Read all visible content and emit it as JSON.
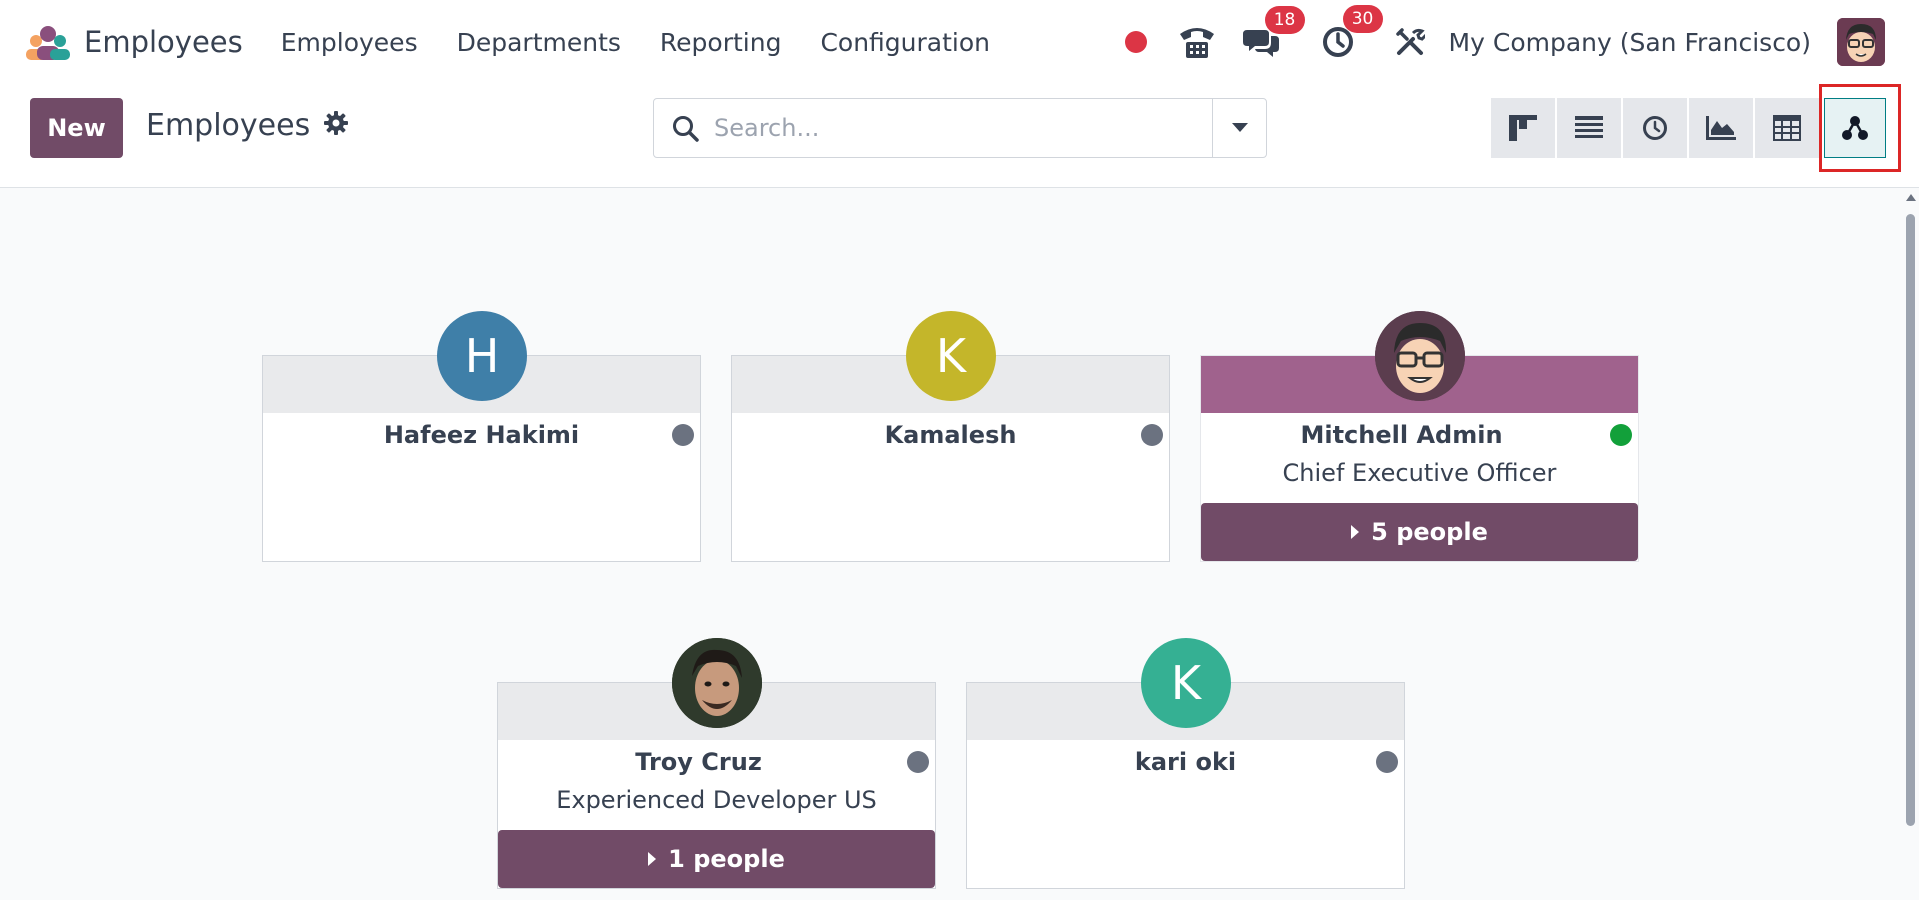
{
  "navbar": {
    "app_name": "Employees",
    "menu": [
      "Employees",
      "Departments",
      "Reporting",
      "Configuration"
    ],
    "messages_badge": "18",
    "activities_badge": "30",
    "company": "My Company (San Francisco)"
  },
  "control": {
    "new_label": "New",
    "breadcrumb": "Employees",
    "search_placeholder": "Search...",
    "views": [
      "kanban-view",
      "list-view",
      "activity-view",
      "graph-view",
      "pivot-view",
      "hierarchy-view"
    ],
    "active_view": "hierarchy-view"
  },
  "cards": [
    {
      "name": "Hafeez Hakimi",
      "job": "",
      "initial": "H",
      "avatar_color": "#3f7fa8",
      "presence": "offline",
      "people": ""
    },
    {
      "name": "Kamalesh",
      "job": "",
      "initial": "K",
      "avatar_color": "#c4b62a",
      "presence": "offline",
      "people": ""
    },
    {
      "name": "Mitchell Admin",
      "job": "Chief Executive Officer",
      "initial": "",
      "avatar_color": "#5b3d4e",
      "presence": "online",
      "people": "5 people"
    },
    {
      "name": "Troy Cruz",
      "job": "Experienced Developer US",
      "initial": "",
      "avatar_color": "#2f3a2c",
      "presence": "offline",
      "people": "1 people"
    },
    {
      "name": "kari oki",
      "job": "",
      "initial": "K",
      "avatar_color": "#35b093",
      "presence": "offline",
      "people": ""
    }
  ],
  "colors": {
    "brand": "#714b67",
    "admin_header": "#a0628d",
    "highlight": "#dc2626"
  }
}
